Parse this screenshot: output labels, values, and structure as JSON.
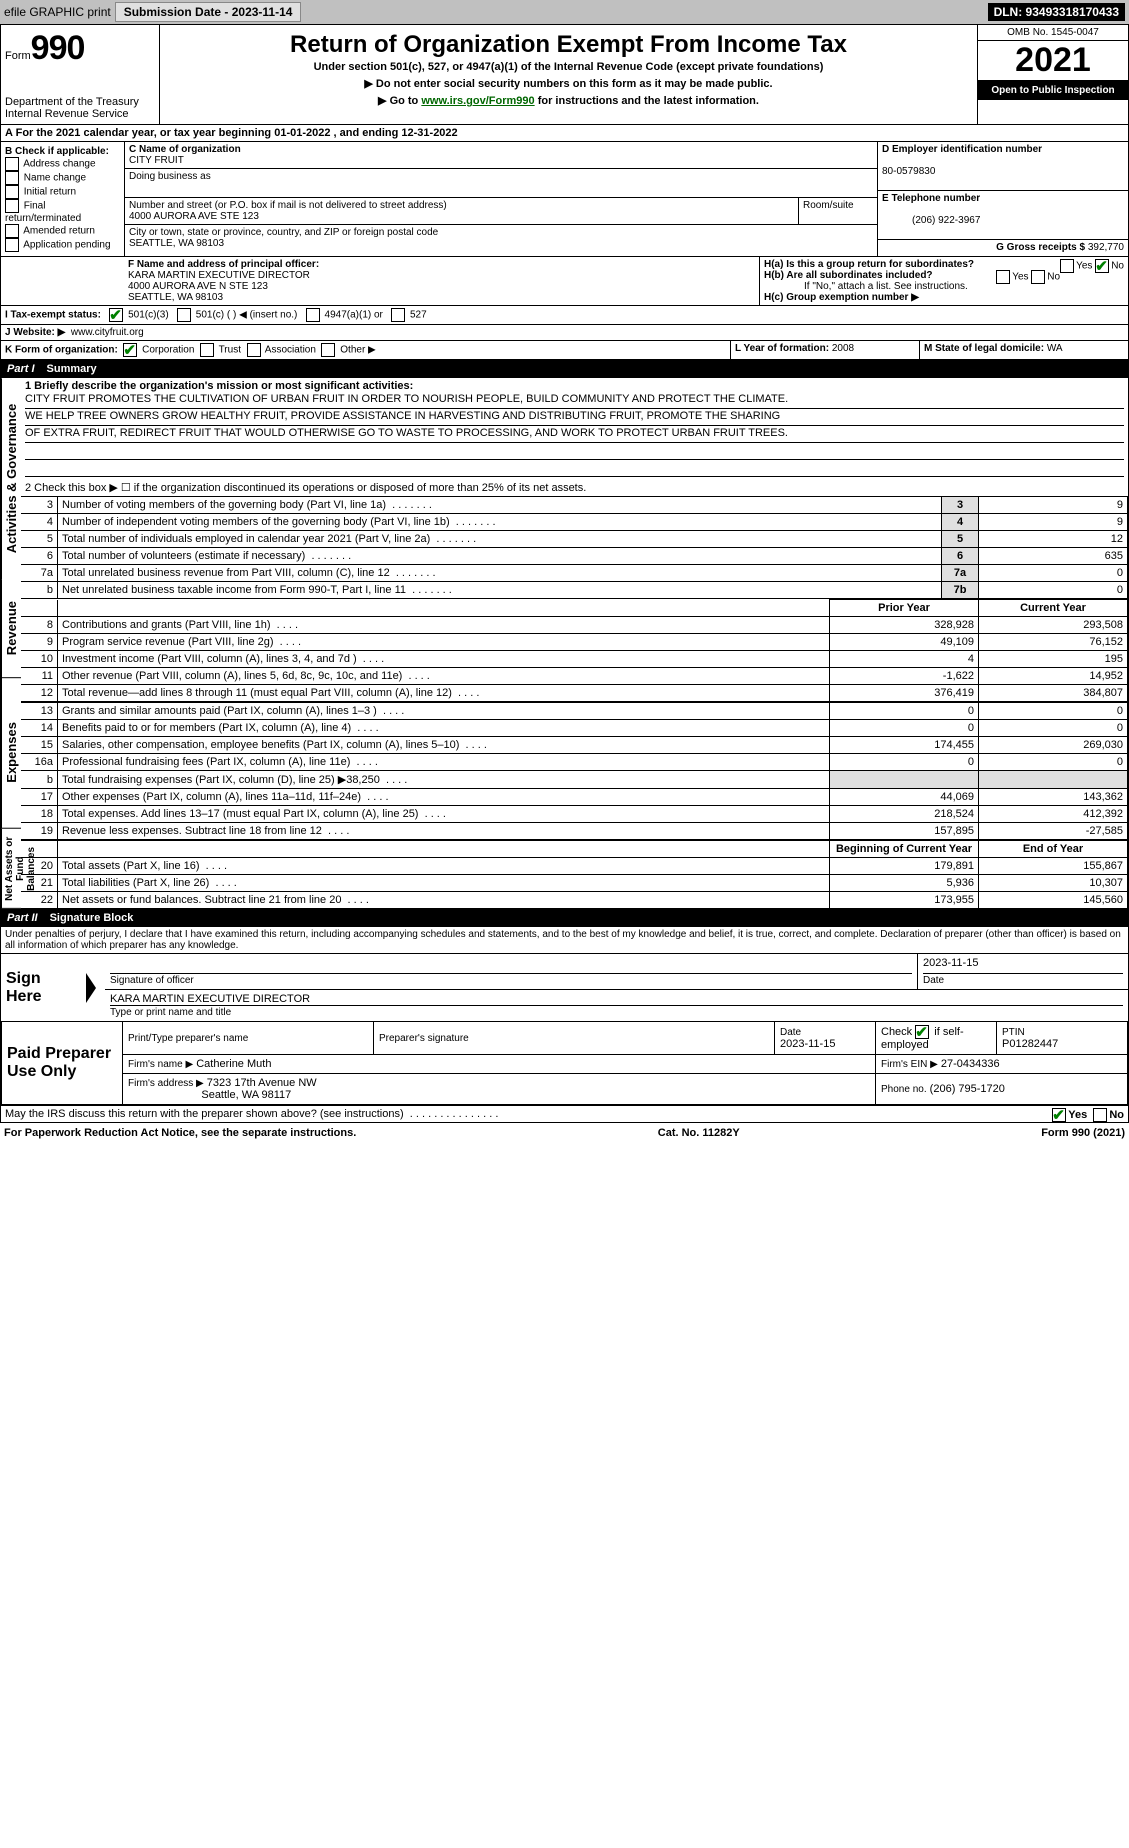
{
  "topbar": {
    "efile": "efile GRAPHIC print",
    "submission_label": "Submission Date - 2023-11-14",
    "dln": "DLN: 93493318170433"
  },
  "header": {
    "form_prefix": "Form",
    "form_number": "990",
    "dept": "Department of the Treasury",
    "irs": "Internal Revenue Service",
    "title": "Return of Organization Exempt From Income Tax",
    "subtitle": "Under section 501(c), 527, or 4947(a)(1) of the Internal Revenue Code (except private foundations)",
    "warn": "▶ Do not enter social security numbers on this form as it may be made public.",
    "goto_prefix": "▶ Go to ",
    "goto_link": "www.irs.gov/Form990",
    "goto_suffix": " for instructions and the latest information.",
    "omb": "OMB No. 1545-0047",
    "year": "2021",
    "open": "Open to Public Inspection"
  },
  "line_a": {
    "text_prefix": "For the 2021 calendar year, or tax year beginning ",
    "begin": "01-01-2022",
    "mid": " , and ending ",
    "end": "12-31-2022"
  },
  "box_b": {
    "label": "B Check if applicable:",
    "items": [
      "Address change",
      "Name change",
      "Initial return",
      "Final return/terminated",
      "Amended return",
      "Application pending"
    ]
  },
  "box_c": {
    "name_label": "C Name of organization",
    "name": "CITY FRUIT",
    "dba_label": "Doing business as",
    "dba": "",
    "street_label": "Number and street (or P.O. box if mail is not delivered to street address)",
    "room_label": "Room/suite",
    "street": "4000 AURORA AVE STE 123",
    "city_label": "City or town, state or province, country, and ZIP or foreign postal code",
    "city": "SEATTLE, WA  98103"
  },
  "box_d": {
    "label": "D Employer identification number",
    "val": "80-0579830"
  },
  "box_e": {
    "label": "E Telephone number",
    "val": "(206) 922-3967"
  },
  "box_g": {
    "label": "G Gross receipts $",
    "val": "392,770"
  },
  "box_f": {
    "label": "F  Name and address of principal officer:",
    "name": "KARA MARTIN EXECUTIVE DIRECTOR",
    "addr1": "4000 AURORA AVE N STE 123",
    "addr2": "SEATTLE, WA  98103"
  },
  "box_h": {
    "ha": "H(a)  Is this a group return for subordinates?",
    "hb": "H(b)  Are all subordinates included?",
    "hb_note": "If \"No,\" attach a list. See instructions.",
    "hc": "H(c)  Group exemption number ▶",
    "yes": "Yes",
    "no": "No"
  },
  "box_i": {
    "label": "I   Tax-exempt status:",
    "c3": "501(c)(3)",
    "c": "501(c) (  ) ◀ (insert no.)",
    "a1": "4947(a)(1) or",
    "527": "527"
  },
  "box_j": {
    "label": "J   Website: ▶",
    "val": "www.cityfruit.org"
  },
  "box_k": {
    "label": "K Form of organization:",
    "corp": "Corporation",
    "trust": "Trust",
    "assoc": "Association",
    "other": "Other ▶"
  },
  "box_l": {
    "label": "L Year of formation:",
    "val": "2008"
  },
  "box_m": {
    "label": "M State of legal domicile:",
    "val": "WA"
  },
  "part1": {
    "label": "Part I",
    "title": "Summary"
  },
  "mission": {
    "label": "1 Briefly describe the organization's mission or most significant activities:",
    "line1": "CITY FRUIT PROMOTES THE CULTIVATION OF URBAN FRUIT IN ORDER TO NOURISH PEOPLE, BUILD COMMUNITY AND PROTECT THE CLIMATE.",
    "line2": "WE HELP TREE OWNERS GROW HEALTHY FRUIT, PROVIDE ASSISTANCE IN HARVESTING AND DISTRIBUTING FRUIT, PROMOTE THE SHARING",
    "line3": "OF EXTRA FRUIT, REDIRECT FRUIT THAT WOULD OTHERWISE GO TO WASTE TO PROCESSING, AND WORK TO PROTECT URBAN FRUIT TREES."
  },
  "line2": "2   Check this box ▶ ☐  if the organization discontinued its operations or disposed of more than 25% of its net assets.",
  "sidebar": {
    "gov": "Activities & Governance",
    "rev": "Revenue",
    "exp": "Expenses",
    "net": "Net Assets or Fund Balances"
  },
  "governance_rows": [
    {
      "n": "3",
      "label": "Number of voting members of the governing body (Part VI, line 1a)",
      "box": "3",
      "val": "9"
    },
    {
      "n": "4",
      "label": "Number of independent voting members of the governing body (Part VI, line 1b)",
      "box": "4",
      "val": "9"
    },
    {
      "n": "5",
      "label": "Total number of individuals employed in calendar year 2021 (Part V, line 2a)",
      "box": "5",
      "val": "12"
    },
    {
      "n": "6",
      "label": "Total number of volunteers (estimate if necessary)",
      "box": "6",
      "val": "635"
    },
    {
      "n": "7a",
      "label": "Total unrelated business revenue from Part VIII, column (C), line 12",
      "box": "7a",
      "val": "0"
    },
    {
      "n": "b",
      "label": "Net unrelated business taxable income from Form 990-T, Part I, line 11",
      "box": "7b",
      "val": "0"
    }
  ],
  "col_headers": {
    "prior": "Prior Year",
    "current": "Current Year"
  },
  "revenue_rows": [
    {
      "n": "8",
      "label": "Contributions and grants (Part VIII, line 1h)",
      "prior": "328,928",
      "curr": "293,508"
    },
    {
      "n": "9",
      "label": "Program service revenue (Part VIII, line 2g)",
      "prior": "49,109",
      "curr": "76,152"
    },
    {
      "n": "10",
      "label": "Investment income (Part VIII, column (A), lines 3, 4, and 7d )",
      "prior": "4",
      "curr": "195"
    },
    {
      "n": "11",
      "label": "Other revenue (Part VIII, column (A), lines 5, 6d, 8c, 9c, 10c, and 11e)",
      "prior": "-1,622",
      "curr": "14,952"
    },
    {
      "n": "12",
      "label": "Total revenue—add lines 8 through 11 (must equal Part VIII, column (A), line 12)",
      "prior": "376,419",
      "curr": "384,807"
    }
  ],
  "expense_rows": [
    {
      "n": "13",
      "label": "Grants and similar amounts paid (Part IX, column (A), lines 1–3 )",
      "prior": "0",
      "curr": "0"
    },
    {
      "n": "14",
      "label": "Benefits paid to or for members (Part IX, column (A), line 4)",
      "prior": "0",
      "curr": "0"
    },
    {
      "n": "15",
      "label": "Salaries, other compensation, employee benefits (Part IX, column (A), lines 5–10)",
      "prior": "174,455",
      "curr": "269,030"
    },
    {
      "n": "16a",
      "label": "Professional fundraising fees (Part IX, column (A), line 11e)",
      "prior": "0",
      "curr": "0"
    },
    {
      "n": "b",
      "label": "Total fundraising expenses (Part IX, column (D), line 25) ▶38,250",
      "prior": "",
      "curr": "",
      "gray": true
    },
    {
      "n": "17",
      "label": "Other expenses (Part IX, column (A), lines 11a–11d, 11f–24e)",
      "prior": "44,069",
      "curr": "143,362"
    },
    {
      "n": "18",
      "label": "Total expenses. Add lines 13–17 (must equal Part IX, column (A), line 25)",
      "prior": "218,524",
      "curr": "412,392"
    },
    {
      "n": "19",
      "label": "Revenue less expenses. Subtract line 18 from line 12",
      "prior": "157,895",
      "curr": "-27,585"
    }
  ],
  "net_headers": {
    "begin": "Beginning of Current Year",
    "end": "End of Year"
  },
  "net_rows": [
    {
      "n": "20",
      "label": "Total assets (Part X, line 16)",
      "prior": "179,891",
      "curr": "155,867"
    },
    {
      "n": "21",
      "label": "Total liabilities (Part X, line 26)",
      "prior": "5,936",
      "curr": "10,307"
    },
    {
      "n": "22",
      "label": "Net assets or fund balances. Subtract line 21 from line 20",
      "prior": "173,955",
      "curr": "145,560"
    }
  ],
  "part2": {
    "label": "Part II",
    "title": "Signature Block"
  },
  "perjury": "Under penalties of perjury, I declare that I have examined this return, including accompanying schedules and statements, and to the best of my knowledge and belief, it is true, correct, and complete. Declaration of preparer (other than officer) is based on all information of which preparer has any knowledge.",
  "sign": {
    "here": "Sign Here",
    "sig_label": "Signature of officer",
    "date_label": "Date",
    "date": "2023-11-15",
    "name": "KARA MARTIN  EXECUTIVE DIRECTOR",
    "name_label": "Type or print name and title"
  },
  "paid": {
    "title": "Paid Preparer Use Only",
    "print_label": "Print/Type preparer's name",
    "print_val": "",
    "sig_label": "Preparer's signature",
    "date_label": "Date",
    "date_val": "2023-11-15",
    "check_label": "Check ☑ if self-employed",
    "ptin_label": "PTIN",
    "ptin_val": "P01282447",
    "firm_name_label": "Firm's name    ▶",
    "firm_name": "Catherine Muth",
    "firm_ein_label": "Firm's EIN ▶",
    "firm_ein": "27-0434336",
    "firm_addr_label": "Firm's address ▶",
    "firm_addr1": "7323 17th Avenue NW",
    "firm_addr2": "Seattle, WA  98117",
    "phone_label": "Phone no.",
    "phone": "(206) 795-1720"
  },
  "discuss": {
    "text": "May the IRS discuss this return with the preparer shown above? (see instructions)",
    "yes": "Yes",
    "no": "No"
  },
  "footer": {
    "left": "For Paperwork Reduction Act Notice, see the separate instructions.",
    "mid": "Cat. No. 11282Y",
    "right_prefix": "Form ",
    "right_form": "990",
    "right_suffix": " (2021)"
  }
}
